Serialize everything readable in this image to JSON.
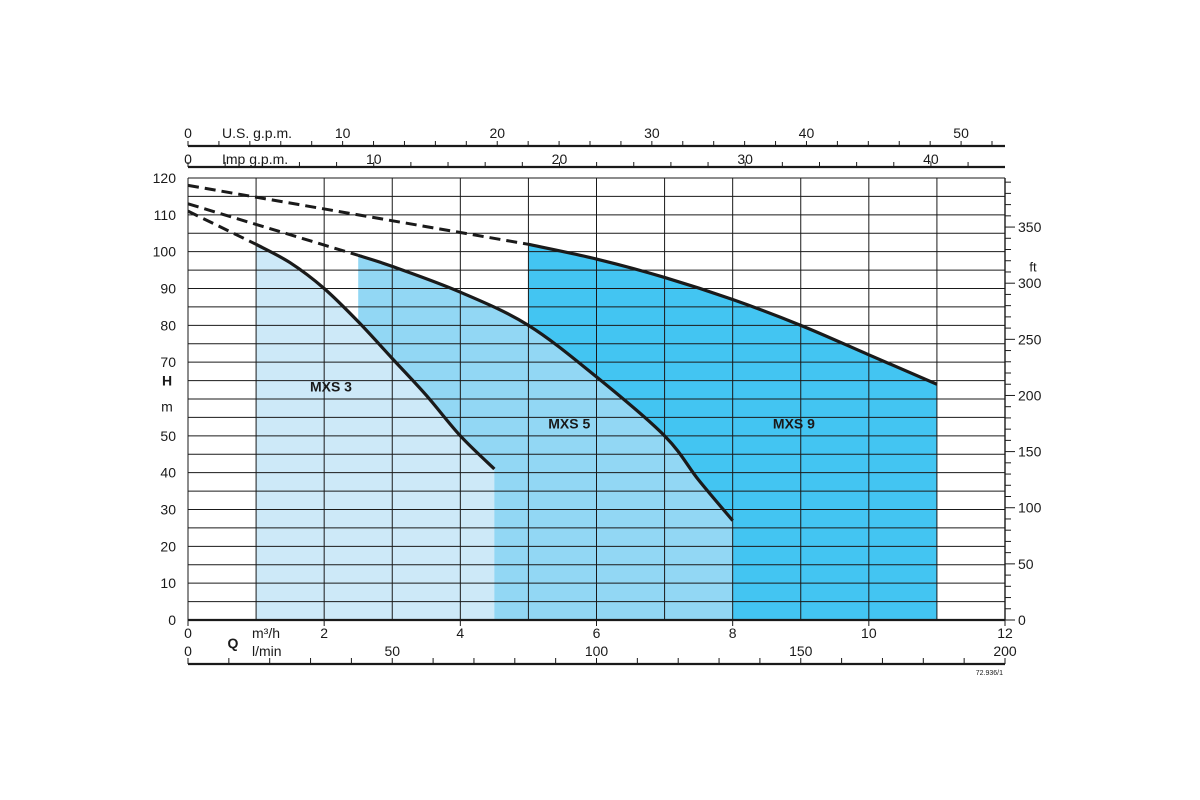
{
  "chart_data": {
    "type": "line",
    "title": "",
    "x_axes": {
      "flow_m3h": {
        "unit_label": "m³/h",
        "ticks": [
          0,
          2,
          4,
          6,
          8,
          10,
          12
        ],
        "range": [
          0,
          12
        ]
      },
      "flow_lmin": {
        "unit_label": "l/min",
        "ticks": [
          0,
          50,
          100,
          150,
          200
        ],
        "range": [
          0,
          200
        ]
      },
      "flow_usgpm": {
        "unit_label": "U.S. g.p.m.",
        "ticks": [
          0,
          10,
          20,
          30,
          40,
          50
        ]
      },
      "flow_impgpm": {
        "unit_label": "Imp g.p.m.",
        "ticks": [
          0,
          10,
          20,
          30,
          40
        ]
      },
      "q_symbol": "Q"
    },
    "y_axes": {
      "head_m": {
        "symbol": "H",
        "unit_label": "m",
        "ticks": [
          0,
          10,
          20,
          30,
          40,
          50,
          70,
          80,
          90,
          100,
          110,
          120
        ],
        "range": [
          0,
          120
        ]
      },
      "head_ft": {
        "unit_label": "ft",
        "ticks": [
          0,
          50,
          100,
          150,
          200,
          250,
          300,
          350
        ]
      }
    },
    "grid": true,
    "series": [
      {
        "name": "MXS 3",
        "dashed_x": [
          0,
          1.0
        ],
        "dashed_y": [
          111,
          102
        ],
        "x": [
          1.0,
          1.5,
          2.0,
          2.5,
          3.0,
          3.5,
          4.0,
          4.5
        ],
        "y": [
          102,
          97,
          90,
          81,
          71,
          61,
          50,
          41
        ],
        "area_x_range": [
          1.0,
          4.5
        ],
        "fill": "#cde9f8",
        "label_pos": [
          2.1,
          62
        ]
      },
      {
        "name": "MXS 5",
        "dashed_x": [
          0,
          2.5
        ],
        "dashed_y": [
          113,
          99
        ],
        "x": [
          2.5,
          3.0,
          4.0,
          5.0,
          6.0,
          7.0,
          7.5,
          8.0
        ],
        "y": [
          99,
          96,
          89,
          80,
          66,
          50,
          38,
          27
        ],
        "area_x_range": [
          2.5,
          8.0
        ],
        "fill": "#92d7f4",
        "label_pos": [
          5.6,
          52
        ]
      },
      {
        "name": "MXS 9",
        "dashed_x": [
          0,
          5.0
        ],
        "dashed_y": [
          118,
          102
        ],
        "x": [
          5.0,
          6.0,
          7.0,
          8.0,
          9.0,
          10.0,
          11.0
        ],
        "y": [
          102,
          98,
          93,
          87,
          80,
          72,
          64
        ],
        "area_x_range": [
          5.0,
          11.0
        ],
        "fill": "#43c5f2",
        "label_pos": [
          8.9,
          52
        ]
      }
    ],
    "footnote": "72.936/1"
  }
}
